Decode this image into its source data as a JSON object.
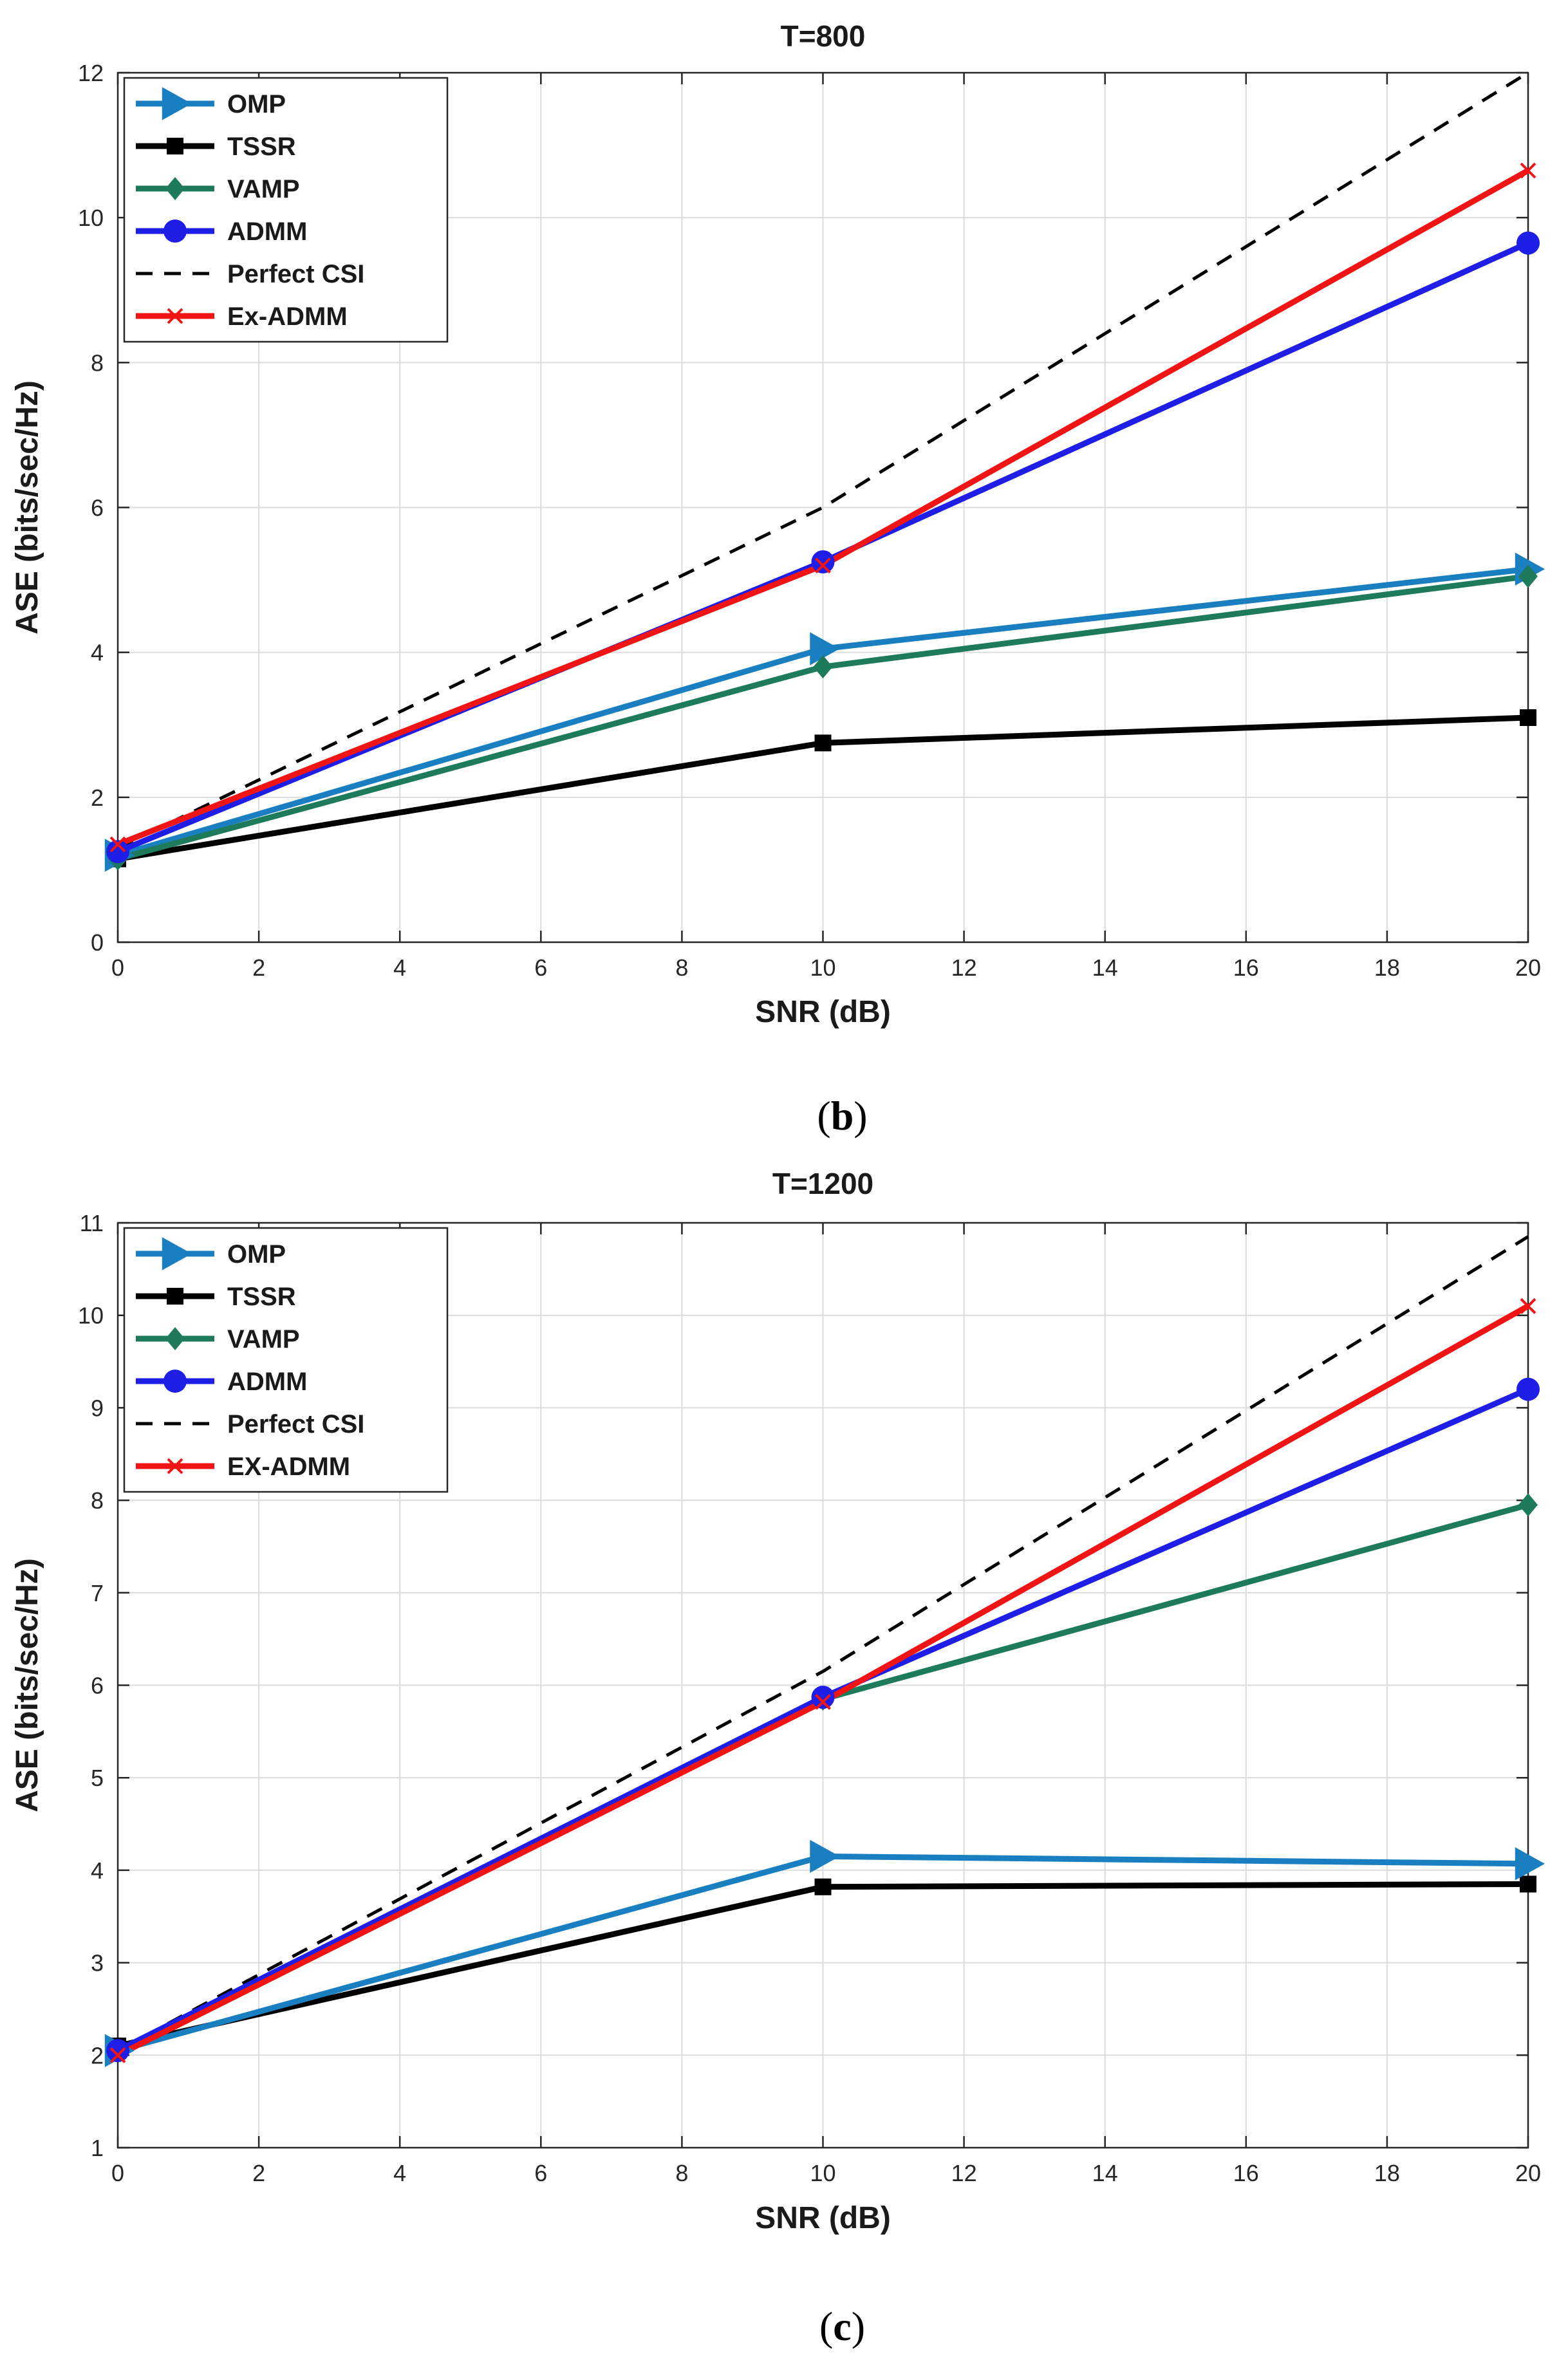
{
  "chart_data": [
    {
      "type": "line",
      "panel_label": "b",
      "title": "T=800",
      "xlabel": "SNR (dB)",
      "ylabel": "ASE (bits/sec/Hz)",
      "xlim": [
        0,
        20
      ],
      "ylim": [
        0,
        12
      ],
      "xticks": [
        0,
        2,
        4,
        6,
        8,
        10,
        12,
        14,
        16,
        18,
        20
      ],
      "yticks": [
        0,
        2,
        4,
        6,
        8,
        10,
        12
      ],
      "grid": true,
      "legend_position": "top-left",
      "x": [
        0,
        10,
        20
      ],
      "series": [
        {
          "name": "OMP",
          "values": [
            1.2,
            4.05,
            5.15
          ],
          "color": "#1a7fc1",
          "marker": "triangle-right",
          "dash": false
        },
        {
          "name": "TSSR",
          "values": [
            1.15,
            2.75,
            3.1
          ],
          "color": "#000000",
          "marker": "square",
          "dash": false
        },
        {
          "name": "VAMP",
          "values": [
            1.15,
            3.8,
            5.05
          ],
          "color": "#1d7a5a",
          "marker": "diamond",
          "dash": false
        },
        {
          "name": "ADMM",
          "values": [
            1.25,
            5.25,
            9.65
          ],
          "color": "#1e1ee6",
          "marker": "circle",
          "dash": false
        },
        {
          "name": "Perfect CSI",
          "values": [
            1.3,
            6.0,
            12.0
          ],
          "color": "#000000",
          "marker": "none",
          "dash": true
        },
        {
          "name": "Ex-ADMM",
          "values": [
            1.35,
            5.2,
            10.65
          ],
          "color": "#f01414",
          "marker": "x",
          "dash": false
        }
      ]
    },
    {
      "type": "line",
      "panel_label": "c",
      "title": "T=1200",
      "xlabel": "SNR (dB)",
      "ylabel": "ASE (bits/sec/Hz)",
      "xlim": [
        0,
        20
      ],
      "ylim": [
        1,
        11
      ],
      "xticks": [
        0,
        2,
        4,
        6,
        8,
        10,
        12,
        14,
        16,
        18,
        20
      ],
      "yticks": [
        1,
        2,
        3,
        4,
        5,
        6,
        7,
        8,
        9,
        10,
        11
      ],
      "grid": true,
      "legend_position": "top-left",
      "x": [
        0,
        10,
        20
      ],
      "series": [
        {
          "name": "OMP",
          "values": [
            2.05,
            4.15,
            4.07
          ],
          "color": "#1a7fc1",
          "marker": "triangle-right",
          "dash": false
        },
        {
          "name": "TSSR",
          "values": [
            2.1,
            3.82,
            3.85
          ],
          "color": "#000000",
          "marker": "square",
          "dash": false
        },
        {
          "name": "VAMP",
          "values": [
            2.05,
            5.85,
            7.95
          ],
          "color": "#1d7a5a",
          "marker": "diamond",
          "dash": false
        },
        {
          "name": "ADMM",
          "values": [
            2.05,
            5.87,
            9.2
          ],
          "color": "#1e1ee6",
          "marker": "circle",
          "dash": false
        },
        {
          "name": "Perfect CSI",
          "values": [
            2.05,
            6.15,
            10.85
          ],
          "color": "#000000",
          "marker": "none",
          "dash": true
        },
        {
          "name": "EX-ADMM",
          "values": [
            2.0,
            5.82,
            10.1
          ],
          "color": "#f01414",
          "marker": "x",
          "dash": false
        }
      ]
    }
  ]
}
